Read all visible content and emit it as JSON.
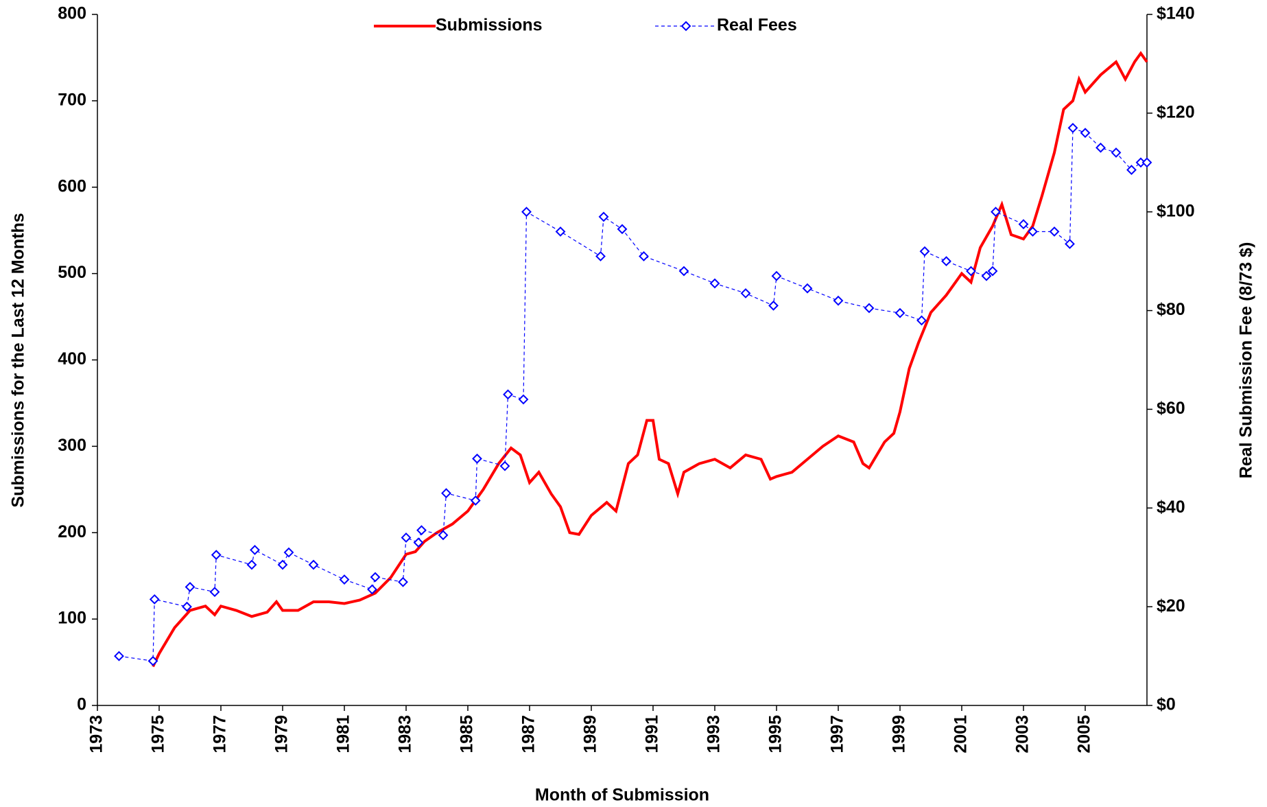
{
  "chart_data": {
    "type": "line",
    "xlabel": "Month of Submission",
    "ylabel": "Submissions for the Last 12 Months",
    "y2label": "Real Submission Fee (8/73 $)",
    "xlim": [
      1973,
      2007
    ],
    "xticks": [
      1973,
      1975,
      1977,
      1979,
      1981,
      1983,
      1985,
      1987,
      1989,
      1991,
      1993,
      1995,
      1997,
      1999,
      2001,
      2003,
      2005
    ],
    "ylim": [
      0,
      800
    ],
    "yticks": [
      0,
      100,
      200,
      300,
      400,
      500,
      600,
      700,
      800
    ],
    "y2lim": [
      0,
      140
    ],
    "y2ticks": [
      {
        "value": 0,
        "label": "$0"
      },
      {
        "value": 20,
        "label": "$20"
      },
      {
        "value": 40,
        "label": "$40"
      },
      {
        "value": 60,
        "label": "$60"
      },
      {
        "value": 80,
        "label": "$80"
      },
      {
        "value": 100,
        "label": "$100"
      },
      {
        "value": 120,
        "label": "$120"
      },
      {
        "value": 140,
        "label": "$140"
      }
    ],
    "legend": "top",
    "series": [
      {
        "name": "Submissions",
        "color": "#ff0000",
        "x": [
          1974.8,
          1975.0,
          1975.5,
          1976.0,
          1976.5,
          1976.8,
          1977.0,
          1977.5,
          1978.0,
          1978.5,
          1978.8,
          1979.0,
          1979.5,
          1980.0,
          1980.5,
          1981.0,
          1981.5,
          1982.0,
          1982.5,
          1983.0,
          1983.3,
          1983.6,
          1984.0,
          1984.5,
          1985.0,
          1985.5,
          1986.0,
          1986.4,
          1986.7,
          1987.0,
          1987.3,
          1987.7,
          1988.0,
          1988.3,
          1988.6,
          1989.0,
          1989.5,
          1989.8,
          1990.2,
          1990.5,
          1990.8,
          1991.0,
          1991.2,
          1991.5,
          1991.8,
          1992.0,
          1992.5,
          1993.0,
          1993.5,
          1994.0,
          1994.5,
          1994.8,
          1995.0,
          1995.5,
          1996.0,
          1996.5,
          1997.0,
          1997.5,
          1997.8,
          1998.0,
          1998.5,
          1998.8,
          1999.0,
          1999.3,
          1999.6,
          2000.0,
          2000.5,
          2001.0,
          2001.3,
          2001.6,
          2002.0,
          2002.3,
          2002.6,
          2003.0,
          2003.3,
          2003.6,
          2004.0,
          2004.3,
          2004.6,
          2004.8,
          2005.0,
          2005.5,
          2006.0,
          2006.3,
          2006.6,
          2006.8,
          2007.0
        ],
        "values": [
          45,
          60,
          90,
          110,
          115,
          105,
          115,
          110,
          103,
          108,
          120,
          110,
          110,
          120,
          120,
          118,
          122,
          130,
          148,
          175,
          178,
          190,
          200,
          210,
          225,
          250,
          280,
          298,
          290,
          258,
          270,
          245,
          230,
          200,
          198,
          220,
          235,
          225,
          280,
          290,
          330,
          330,
          285,
          280,
          245,
          270,
          280,
          285,
          275,
          290,
          285,
          262,
          265,
          270,
          285,
          300,
          312,
          305,
          280,
          275,
          305,
          315,
          340,
          390,
          420,
          455,
          475,
          500,
          490,
          530,
          555,
          580,
          545,
          540,
          555,
          590,
          640,
          690,
          700,
          725,
          710,
          730,
          745,
          725,
          745,
          755,
          745
        ]
      },
      {
        "name": "Real Fees",
        "color": "#0000ff",
        "axis": "y2",
        "x": [
          1973.7,
          1974.8,
          1974.85,
          1975.9,
          1976.0,
          1976.8,
          1976.85,
          1978.0,
          1978.1,
          1979.0,
          1979.2,
          1980.0,
          1981.0,
          1981.9,
          1982.0,
          1982.9,
          1983.0,
          1983.4,
          1983.5,
          1984.2,
          1984.3,
          1985.25,
          1985.3,
          1986.2,
          1986.3,
          1986.8,
          1986.9,
          1988.0,
          1989.3,
          1989.4,
          1990.0,
          1990.7,
          1992.0,
          1993.0,
          1994.0,
          1994.9,
          1995.0,
          1996.0,
          1997.0,
          1998.0,
          1999.0,
          1999.7,
          1999.8,
          2000.5,
          2001.3,
          2001.8,
          2002.0,
          2002.1,
          2003.0,
          2003.3,
          2004.0,
          2004.5,
          2004.6,
          2005.0,
          2005.5,
          2006.0,
          2006.5,
          2006.8,
          2007.0
        ],
        "values": [
          10,
          9,
          21.5,
          20,
          24,
          23,
          30.5,
          28.5,
          31.5,
          28.5,
          31,
          28.5,
          25.5,
          23.5,
          26,
          25,
          34,
          33,
          35.5,
          34.5,
          43,
          41.5,
          50,
          48.5,
          63,
          62,
          100,
          96,
          91,
          99,
          96.5,
          91,
          88,
          85.5,
          83.5,
          81,
          87,
          84.5,
          82,
          80.5,
          79.5,
          78,
          92,
          90,
          88,
          87,
          88,
          100,
          97.5,
          96,
          96,
          93.5,
          117,
          116,
          113,
          112,
          108.5,
          110,
          110
        ]
      }
    ]
  }
}
